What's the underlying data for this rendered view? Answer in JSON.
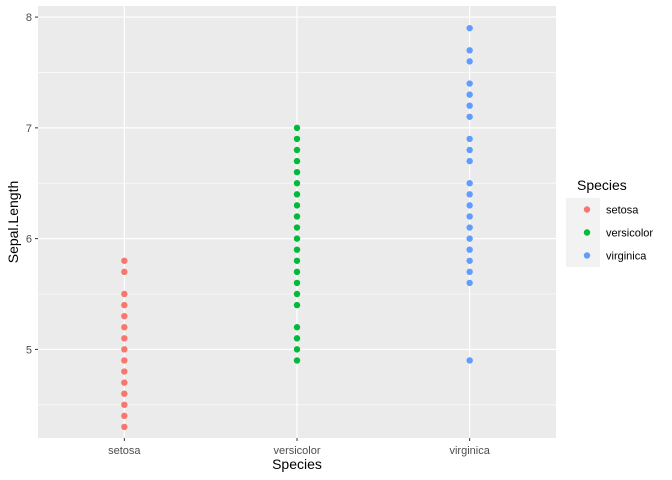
{
  "chart_data": {
    "type": "scatter",
    "xlabel": "Species",
    "ylabel": "Sepal.Length",
    "categories": [
      "setosa",
      "versicolor",
      "virginica"
    ],
    "ylim": [
      4.2,
      8.1
    ],
    "y_ticks": [
      5,
      6,
      7,
      8
    ],
    "grid": true,
    "legend": {
      "title": "Species",
      "position": "right"
    },
    "series": [
      {
        "name": "setosa",
        "category": "setosa",
        "color": "#F8766D",
        "values": [
          4.3,
          4.4,
          4.5,
          4.6,
          4.7,
          4.8,
          4.9,
          5.0,
          5.1,
          5.2,
          5.3,
          5.4,
          5.5,
          5.7,
          5.8
        ]
      },
      {
        "name": "versicolor",
        "category": "versicolor",
        "color": "#00BA38",
        "values": [
          4.9,
          5.0,
          5.1,
          5.2,
          5.4,
          5.5,
          5.6,
          5.7,
          5.8,
          5.9,
          6.0,
          6.1,
          6.2,
          6.3,
          6.4,
          6.5,
          6.6,
          6.7,
          6.8,
          6.9,
          7.0
        ]
      },
      {
        "name": "virginica",
        "category": "virginica",
        "color": "#619CFF",
        "values": [
          4.9,
          5.6,
          5.7,
          5.8,
          5.9,
          6.0,
          6.1,
          6.2,
          6.3,
          6.4,
          6.5,
          6.7,
          6.8,
          6.9,
          7.1,
          7.2,
          7.3,
          7.4,
          7.6,
          7.7,
          7.9
        ]
      }
    ]
  }
}
